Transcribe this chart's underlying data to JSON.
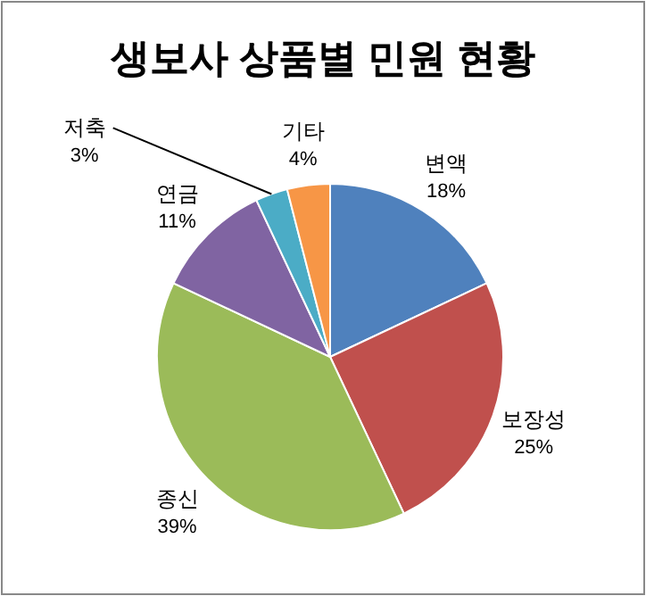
{
  "chart_data": {
    "type": "pie",
    "title": "생보사 상품별 민원 현황",
    "categories": [
      "변액",
      "보장성",
      "종신",
      "연금",
      "저축",
      "기타"
    ],
    "values": [
      18,
      25,
      39,
      11,
      3,
      4
    ],
    "value_labels": [
      "18%",
      "25%",
      "39%",
      "11%",
      "3%",
      "4%"
    ],
    "colors": [
      "#4f81bd",
      "#c0504d",
      "#9bbb59",
      "#8064a2",
      "#4bacc6",
      "#f79646"
    ]
  }
}
